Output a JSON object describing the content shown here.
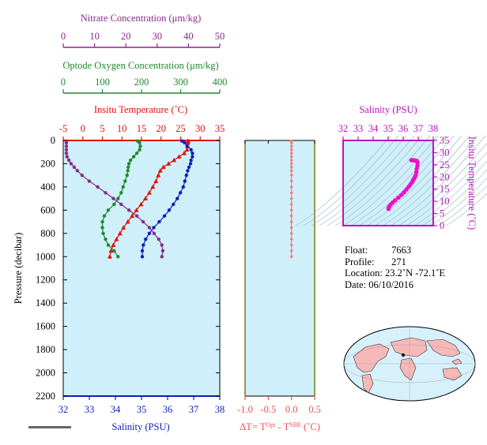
{
  "chart_data": [
    {
      "type": "line",
      "panel": "profile",
      "ylabel": "Pressure (decibar)",
      "ylim": [
        2200,
        0
      ],
      "y_ticks": [
        0,
        200,
        400,
        600,
        800,
        1000,
        1200,
        1400,
        1600,
        1800,
        2000,
        2200
      ],
      "axes": {
        "nitrate": {
          "label": "Nitrate Concentration (μm/kg)",
          "ticks": [
            0,
            10,
            20,
            30,
            40,
            50
          ],
          "range": [
            0,
            50
          ],
          "color": "#8a2a8a"
        },
        "oxygen": {
          "label": "Optode Oxygen Concentration (μm/kg)",
          "ticks": [
            0,
            100,
            200,
            300,
            400
          ],
          "range": [
            0,
            400
          ],
          "color": "#1e8a2e"
        },
        "temperature": {
          "label": "Insitu Temperature (˚C)",
          "ticks": [
            -5,
            0,
            5,
            10,
            15,
            20,
            25,
            30,
            35
          ],
          "range": [
            -5,
            35
          ],
          "color": "#e01010"
        },
        "salinity": {
          "label": "Salinity (PSU)",
          "ticks": [
            32,
            33,
            34,
            35,
            36,
            37,
            38
          ],
          "range": [
            32,
            38
          ],
          "color": "#0a1fc0"
        }
      },
      "series": [
        {
          "name": "Insitu Temperature",
          "axis": "temperature",
          "color": "#e01010",
          "marker": "triangle",
          "pressure": [
            5,
            20,
            50,
            80,
            110,
            140,
            170,
            200,
            230,
            260,
            300,
            350,
            400,
            450,
            500,
            550,
            600,
            650,
            700,
            750,
            800,
            850,
            900,
            950,
            1000
          ],
          "values": [
            26.9,
            26.9,
            26.8,
            26.6,
            25.9,
            24.6,
            23.3,
            21.9,
            20.6,
            19.8,
            19.3,
            18.7,
            17.9,
            17.0,
            16.0,
            14.9,
            13.7,
            12.6,
            11.5,
            10.4,
            9.5,
            8.6,
            7.8,
            7.2,
            6.9
          ]
        },
        {
          "name": "Salinity",
          "axis": "salinity",
          "color": "#0a1fc0",
          "marker": "dot",
          "pressure": [
            5,
            20,
            50,
            80,
            110,
            140,
            170,
            200,
            230,
            260,
            300,
            350,
            400,
            450,
            500,
            550,
            600,
            650,
            700,
            750,
            800,
            850,
            900,
            950,
            1000
          ],
          "values": [
            36.55,
            36.65,
            36.75,
            36.9,
            36.95,
            36.95,
            36.9,
            36.88,
            36.82,
            36.77,
            36.72,
            36.66,
            36.6,
            36.49,
            36.37,
            36.22,
            36.06,
            35.88,
            35.68,
            35.47,
            35.3,
            35.16,
            35.07,
            35.03,
            35.03
          ]
        },
        {
          "name": "Optode Oxygen",
          "axis": "oxygen",
          "color": "#1e8a2e",
          "marker": "dot",
          "pressure": [
            5,
            20,
            50,
            80,
            110,
            140,
            170,
            200,
            230,
            260,
            300,
            350,
            400,
            450,
            500,
            550,
            600,
            650,
            700,
            750,
            800,
            850,
            900,
            950,
            1000
          ],
          "values": [
            190,
            195,
            197,
            195,
            188,
            180,
            172,
            168,
            166,
            165,
            163,
            158,
            153,
            148,
            140,
            130,
            115,
            105,
            100,
            100,
            102,
            108,
            115,
            130,
            140
          ]
        },
        {
          "name": "Nitrate",
          "axis": "nitrate",
          "color": "#8a2a8a",
          "marker": "dot",
          "pressure": [
            5,
            20,
            50,
            80,
            110,
            140,
            170,
            200,
            230,
            260,
            300,
            350,
            400,
            450,
            500,
            550,
            600,
            650,
            700,
            750,
            800,
            850,
            900,
            950,
            1000
          ],
          "values": [
            1,
            1,
            1,
            1,
            1,
            1.2,
            1.8,
            2.5,
            3.5,
            4.5,
            6,
            8.3,
            11,
            13.5,
            16,
            18.5,
            21,
            23.5,
            25.5,
            27.5,
            29,
            30.5,
            31.5,
            31.8,
            31.5
          ]
        }
      ]
    },
    {
      "type": "scatter",
      "panel": "delta-t",
      "xlabel_base": "ΔT= T",
      "xlabel_sup1": "Opt",
      "xlabel_mid": " - T",
      "xlabel_sup2": "SBE",
      "xlabel_unit": " (˚C)",
      "xlim": [
        -1.0,
        0.5
      ],
      "x_ticks": [
        "-1.0",
        "-0.5",
        "0.0",
        "0.5"
      ],
      "ylim": [
        2200,
        0
      ],
      "color": "#f08080",
      "series": [
        {
          "pressure": [
            5,
            20,
            50,
            80,
            110,
            140,
            170,
            200,
            230,
            260,
            300,
            350,
            400,
            450,
            500,
            550,
            600,
            650,
            700,
            750,
            800,
            850,
            900,
            950,
            1000
          ],
          "values": [
            0.0,
            0.0,
            0.0,
            0.0,
            0.0,
            0.0,
            0.0,
            0.0,
            0.0,
            0.0,
            0.0,
            0.0,
            0.0,
            0.0,
            0.0,
            0.0,
            0.0,
            0.0,
            0.0,
            0.0,
            0.0,
            0.0,
            0.0,
            0.0,
            0.0
          ]
        }
      ]
    },
    {
      "type": "scatter",
      "panel": "t-s",
      "title": "Salinity (PSU)",
      "ylabel": "Insitu Temperature (˚C)",
      "xlim": [
        32,
        38
      ],
      "ylim": [
        0,
        35
      ],
      "x_ticks": [
        32,
        33,
        34,
        35,
        36,
        37,
        38
      ],
      "y_ticks": [
        0,
        5,
        10,
        15,
        20,
        25,
        30,
        35
      ],
      "color": "#ee10c8",
      "salinity": [
        36.55,
        36.65,
        36.75,
        36.9,
        36.95,
        36.95,
        36.9,
        36.88,
        36.82,
        36.77,
        36.72,
        36.66,
        36.6,
        36.49,
        36.37,
        36.22,
        36.06,
        35.88,
        35.68,
        35.47,
        35.3,
        35.16,
        35.07,
        35.03,
        35.03
      ],
      "temperature": [
        26.9,
        26.9,
        26.8,
        26.6,
        25.9,
        24.6,
        23.3,
        21.9,
        20.6,
        19.8,
        19.3,
        18.7,
        17.9,
        17.0,
        16.0,
        14.9,
        13.7,
        12.6,
        11.5,
        10.4,
        9.5,
        8.6,
        7.8,
        7.2,
        6.9
      ]
    }
  ],
  "info": {
    "float_label": "Float:",
    "float_value": "7663",
    "profile_label": "Profile:",
    "profile_value": "271",
    "location_label": "Location:",
    "location_value": "23.2˚N  -72.1˚E",
    "date_label": "Date:",
    "date_value": "06/10/2016"
  },
  "colors": {
    "panel_background": "#cff0fa",
    "land": "#f7b8b8",
    "ocean": "#d6f1fb"
  }
}
